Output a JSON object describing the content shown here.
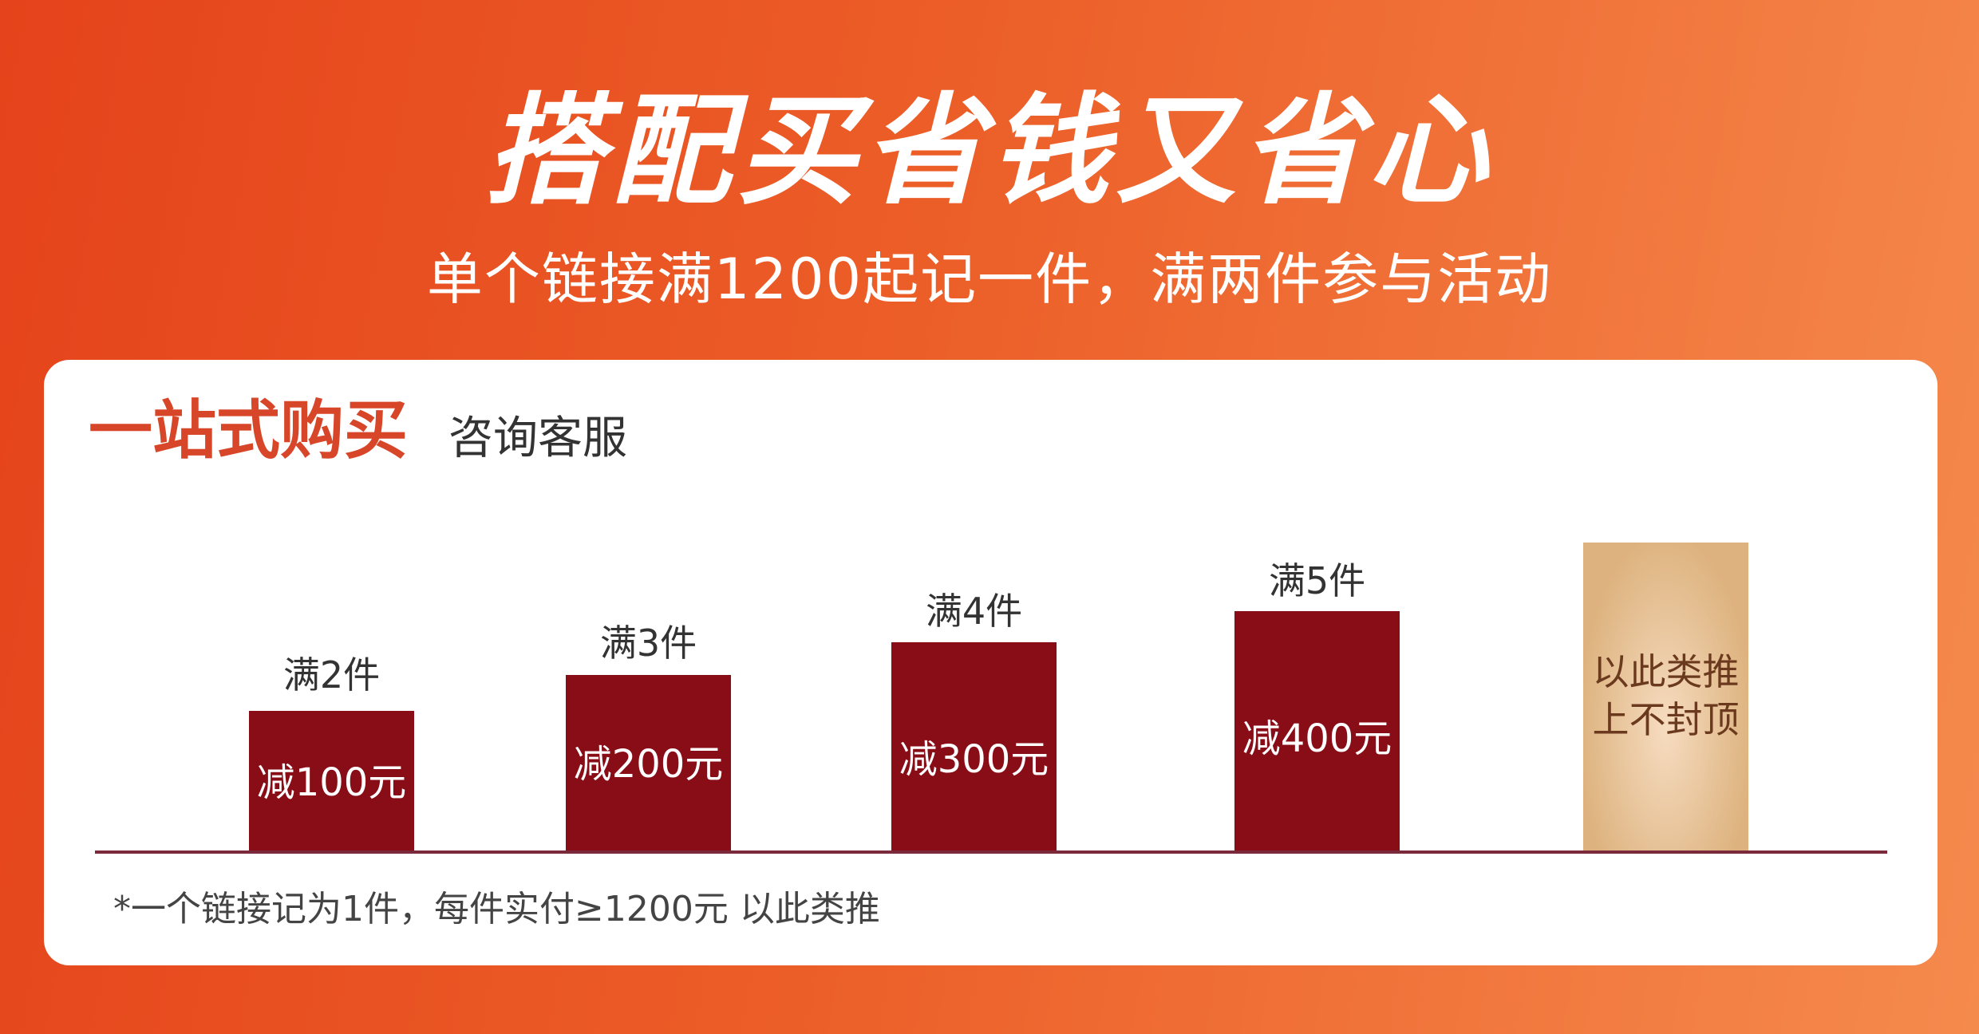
{
  "header": {
    "title": "搭配买省钱又省心",
    "subtitle": "单个链接满1200起记一件，满两件参与活动"
  },
  "card": {
    "title": "一站式购买",
    "link": "咨询客服",
    "tiers": [
      {
        "label": "满2件",
        "discount": "减100元"
      },
      {
        "label": "满3件",
        "discount": "减200元"
      },
      {
        "label": "满4件",
        "discount": "减300元"
      },
      {
        "label": "满5件",
        "discount": "减400元"
      }
    ],
    "more": [
      "以此类推",
      "上不封顶"
    ],
    "footnote": "*一个链接记为1件，每件实付≥1200元 以此类推"
  }
}
